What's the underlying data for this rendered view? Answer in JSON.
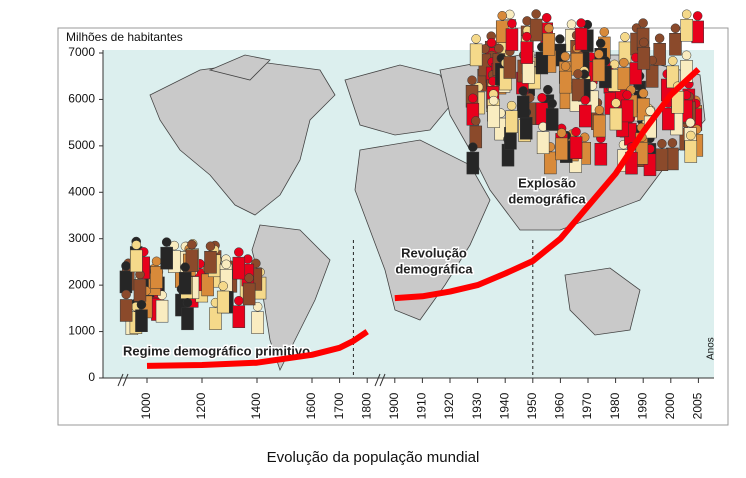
{
  "chart_data": {
    "type": "line",
    "title": "Evolução da população mundial",
    "y_label": "Milhões de habitantes",
    "x_label": "Anos",
    "annotations": {
      "primitive": "Regime demográfico primitivo",
      "revolution": [
        "Revolução",
        "demográfica"
      ],
      "explosion": [
        "Explosão",
        "demográfica"
      ]
    },
    "x": [
      1000,
      1200,
      1400,
      1600,
      1700,
      1750,
      1800,
      1850,
      1900,
      1910,
      1920,
      1930,
      1940,
      1950,
      1960,
      1970,
      1980,
      1990,
      2000,
      2005
    ],
    "values": [
      260,
      280,
      330,
      500,
      650,
      800,
      1000,
      null,
      1720,
      1760,
      1860,
      2000,
      2250,
      2520,
      3000,
      3700,
      4400,
      5300,
      6100,
      6650
    ],
    "color": "#ff0000",
    "vlines": [
      1750,
      1950
    ],
    "ylim": [
      0,
      7000
    ],
    "yticks": [
      0,
      1000,
      2000,
      3000,
      4000,
      5000,
      6000,
      7000
    ],
    "xticks": [
      1000,
      1200,
      1400,
      1600,
      1700,
      1800,
      1900,
      1910,
      1920,
      1930,
      1940,
      1950,
      1960,
      1970,
      1980,
      1990,
      2000,
      2005
    ]
  }
}
